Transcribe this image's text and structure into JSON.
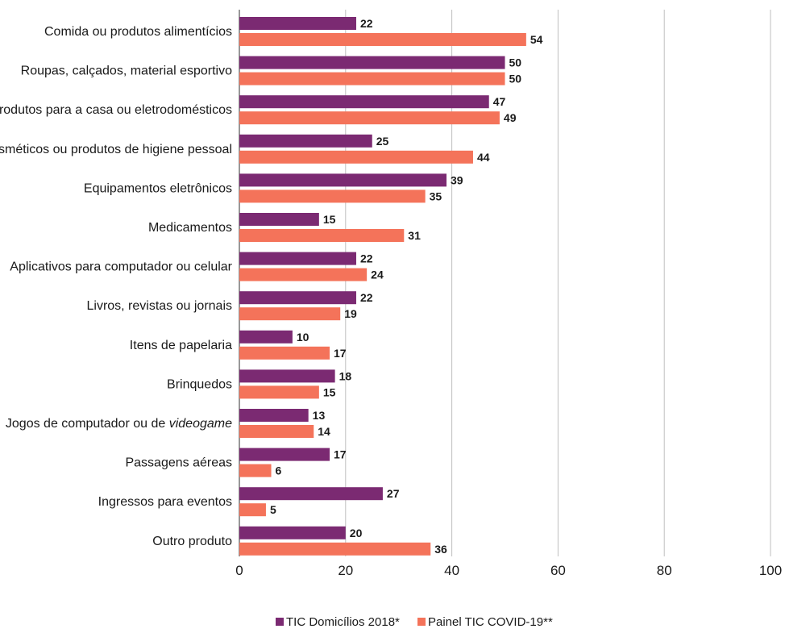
{
  "chart_data": {
    "type": "bar",
    "orientation": "horizontal",
    "title": "",
    "xlabel": "",
    "ylabel": "",
    "xlim": [
      0,
      100
    ],
    "x_ticks": [
      0,
      20,
      40,
      60,
      80,
      100
    ],
    "grid": "vertical",
    "legend_position": "bottom-center",
    "categories": [
      "Comida ou produtos alimentícios",
      "Roupas, calçados, material esportivo",
      "Produtos para a casa ou eletrodomésticos",
      "Cosméticos ou produtos de higiene pessoal",
      "Equipamentos eletrônicos",
      "Medicamentos",
      "Aplicativos para computador ou celular",
      "Livros, revistas ou jornais",
      "Itens de papelaria",
      "Brinquedos",
      "Jogos de computador ou de videogame",
      "Passagens aéreas",
      "Ingressos para eventos",
      "Outro produto"
    ],
    "series": [
      {
        "name": "TIC Domicílios 2018*",
        "color": "#7b2a72",
        "values": [
          22,
          50,
          47,
          25,
          39,
          15,
          22,
          22,
          10,
          18,
          13,
          17,
          27,
          20
        ]
      },
      {
        "name": "Painel TIC COVID-19**",
        "color": "#f4735a",
        "values": [
          54,
          50,
          49,
          44,
          35,
          31,
          24,
          19,
          17,
          15,
          14,
          6,
          5,
          36
        ]
      }
    ]
  }
}
